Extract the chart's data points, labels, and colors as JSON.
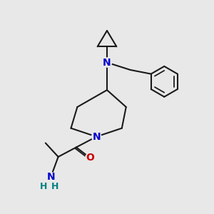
{
  "bg_color": "#e8e8e8",
  "line_color": "#1a1a1a",
  "N_color": "#0000cc",
  "O_color": "#cc0000",
  "NH_color": "#008080",
  "bond_lw": 1.5,
  "font_size": 10,
  "fig_size": [
    3.0,
    3.0
  ],
  "dpi": 100,
  "xlim": [
    0,
    10
  ],
  "ylim": [
    0,
    10
  ]
}
